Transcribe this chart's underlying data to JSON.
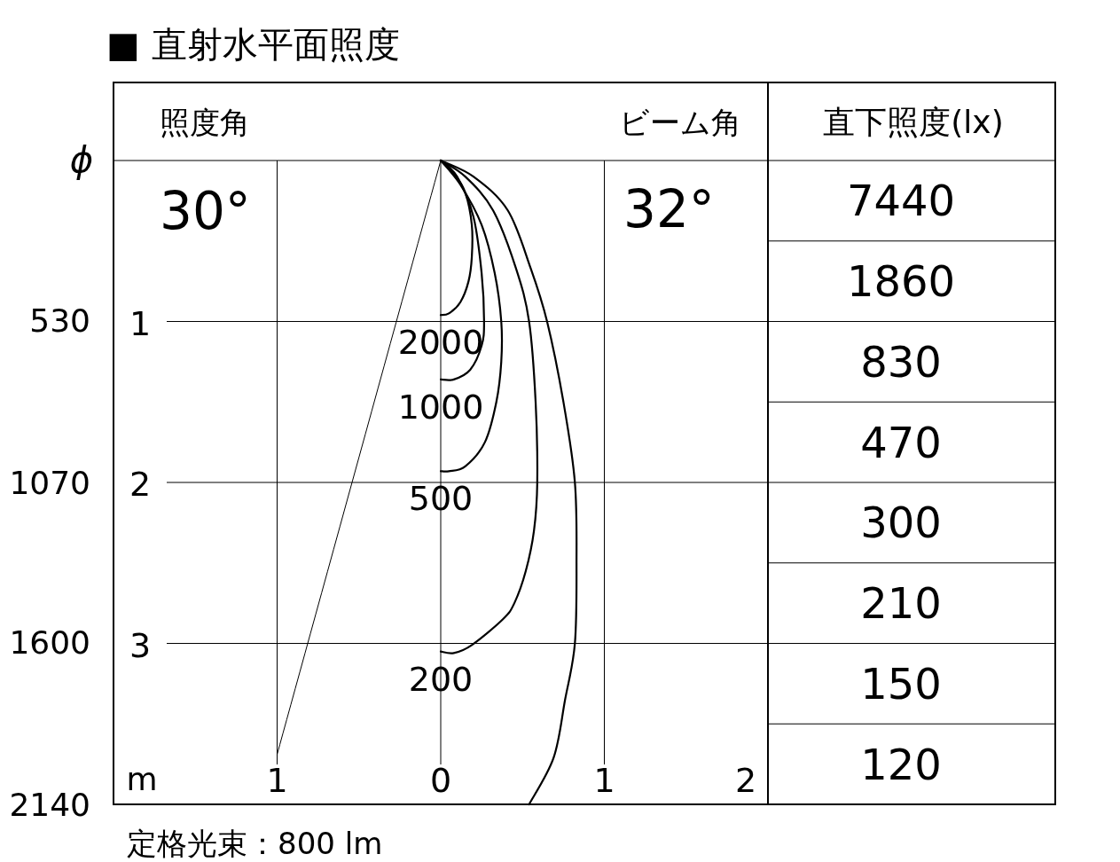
{
  "chart_data": [
    {
      "type": "line",
      "title": "■ 直射水平面照度",
      "xlabel": "m",
      "y2label": "ϕ",
      "xlim": [
        -2,
        2
      ],
      "xticks": [
        {
          "value": -1,
          "label": "1"
        },
        0,
        1,
        2
      ],
      "ylim": [
        4,
        0
      ],
      "yticks": [
        1,
        2,
        3
      ],
      "y2lim": [
        2140,
        0
      ],
      "y2ticks": [
        530,
        1070,
        1600,
        2140
      ],
      "grid": true,
      "marker": "none",
      "line_style": "solid",
      "series": [
        {
          "name": "2000",
          "color": "#000000",
          "x": [
            0,
            0.08,
            0.15,
            0.19,
            0.19,
            0.17,
            0.12,
            0.05,
            0
          ],
          "values": [
            0,
            0.08,
            0.2,
            0.4,
            0.6,
            0.75,
            0.88,
            0.95,
            0.96
          ]
        },
        {
          "name": "1000",
          "color": "#000000",
          "x": [
            0,
            0.1,
            0.2,
            0.25,
            0.265,
            0.25,
            0.18,
            0.08,
            0
          ],
          "values": [
            0,
            0.1,
            0.35,
            0.7,
            1.0,
            1.15,
            1.3,
            1.36,
            1.36
          ]
        },
        {
          "name": "500",
          "color": "#000000",
          "x": [
            0,
            0.12,
            0.25,
            0.33,
            0.37,
            0.37,
            0.34,
            0.27,
            0.15,
            0.05,
            0
          ],
          "values": [
            0,
            0.15,
            0.4,
            0.7,
            1.0,
            1.25,
            1.5,
            1.75,
            1.9,
            1.93,
            1.93
          ]
        },
        {
          "name": "200",
          "color": "#000000",
          "x": [
            0,
            0.15,
            0.32,
            0.46,
            0.54,
            0.58,
            0.59,
            0.57,
            0.52,
            0.45,
            0.38,
            0.19,
            0.08,
            0
          ],
          "values": [
            0,
            0.1,
            0.31,
            0.67,
            1.0,
            1.5,
            2.0,
            2.3,
            2.55,
            2.75,
            2.85,
            3.01,
            3.06,
            3.05
          ]
        },
        {
          "color": "#000000",
          "x": [
            0,
            0.2,
            0.41,
            0.55,
            0.65,
            0.75,
            0.82,
            0.83,
            0.82,
            0.76,
            0.69,
            0.54
          ],
          "values": [
            0,
            0.1,
            0.31,
            0.67,
            1.0,
            1.5,
            2.0,
            2.5,
            3.0,
            3.35,
            3.71,
            4
          ]
        },
        {
          "color": "#000000",
          "x": [
            0,
            -1
          ],
          "values": [
            0,
            3.69
          ]
        }
      ],
      "annotations": [
        "照度角",
        "30°",
        "ビーム角",
        "32°",
        "定格光束：800 lm"
      ]
    },
    {
      "type": "other",
      "title": "直下照度(lx)",
      "values": [
        7440,
        1860,
        830,
        470,
        300,
        210,
        150,
        120
      ],
      "data_labels": true
    }
  ]
}
